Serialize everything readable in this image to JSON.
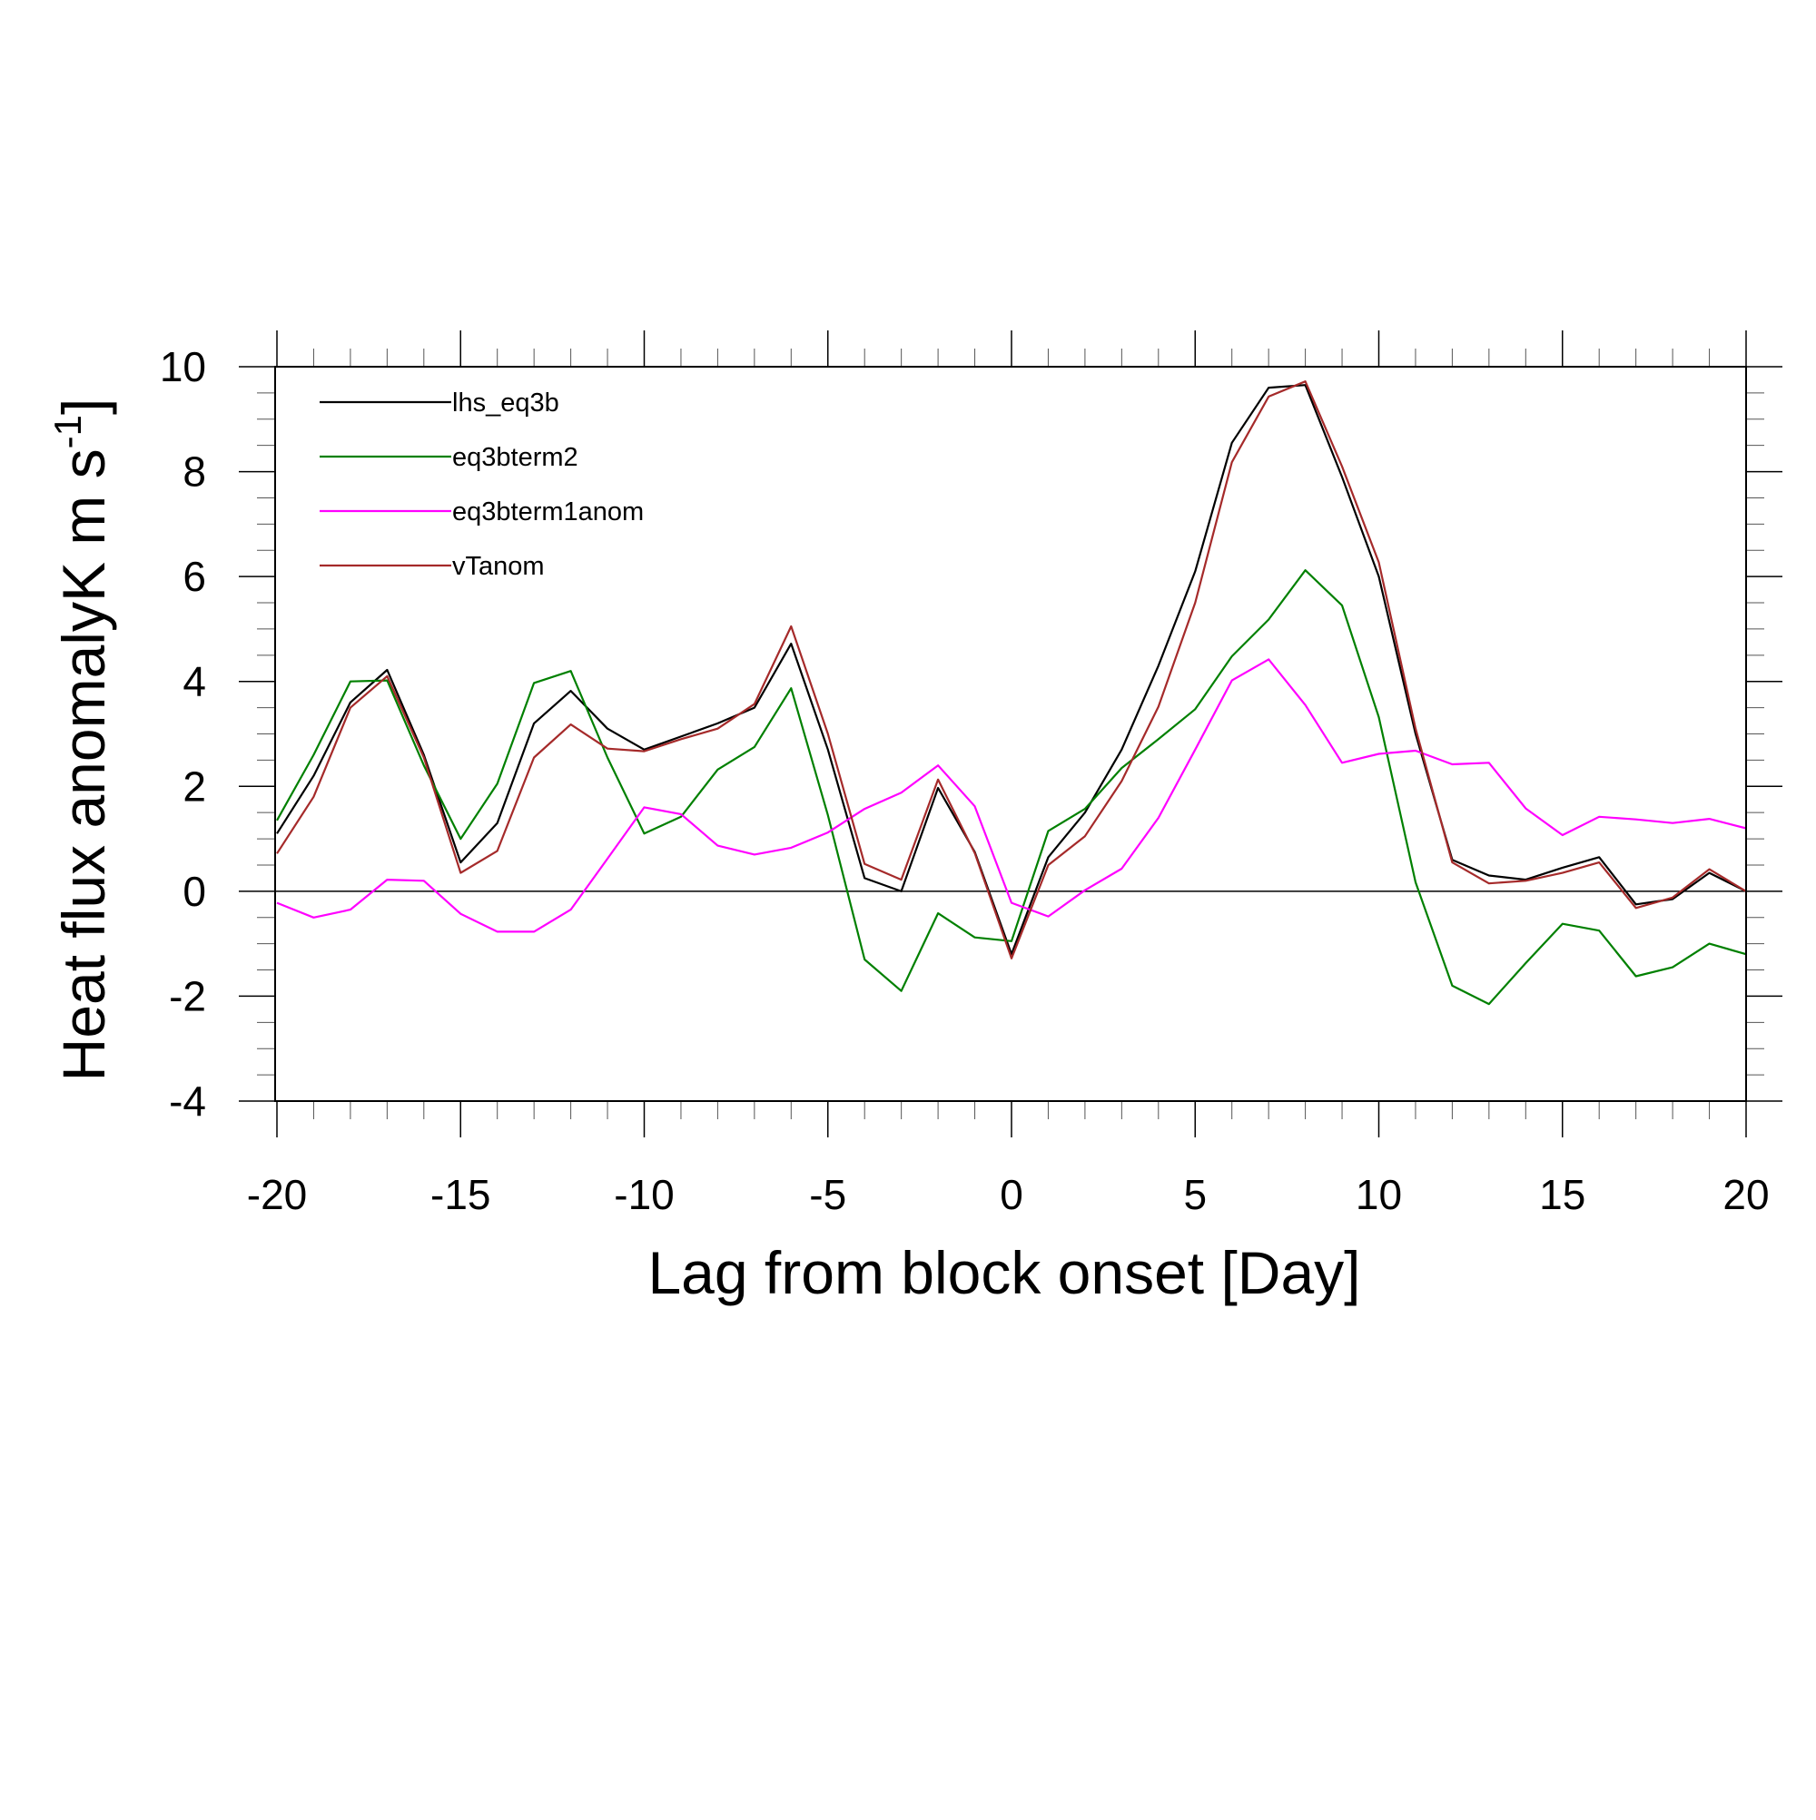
{
  "chart_data": {
    "type": "line",
    "xlabel": "Lag from block onset [Day]",
    "ylabel": "Heat flux anomalyK m s",
    "ylabel_superscript": "-1",
    "ylabel_close": "]",
    "xlim": [
      -20,
      20
    ],
    "ylim": [
      -4,
      10
    ],
    "x_ticks": [
      -20,
      -15,
      -10,
      -5,
      0,
      5,
      10,
      15,
      20
    ],
    "x_tick_labels": [
      "-20",
      "-15",
      "-10",
      "-5",
      "0",
      "5",
      "10",
      "15",
      "20"
    ],
    "y_ticks": [
      -4,
      -2,
      0,
      2,
      4,
      6,
      8,
      10
    ],
    "y_tick_labels": [
      "-4",
      "-2",
      "0",
      "2",
      "4",
      "6",
      "8",
      "10"
    ],
    "zero_line": true,
    "grid": false,
    "legend_position": "top-left",
    "x": [
      -20,
      -19,
      -18,
      -17,
      -16,
      -15,
      -14,
      -13,
      -12,
      -11,
      -10,
      -9,
      -8,
      -7,
      -6,
      -5,
      -4,
      -3,
      -2,
      -1,
      0,
      1,
      2,
      3,
      4,
      5,
      6,
      7,
      8,
      9,
      10,
      11,
      12,
      13,
      14,
      15,
      16,
      17,
      18,
      19,
      20
    ],
    "series": [
      {
        "name": "lhs_eq3b",
        "color": "#000000",
        "values": [
          1.1,
          2.2,
          3.6,
          4.22,
          2.6,
          0.55,
          1.3,
          3.2,
          3.82,
          3.1,
          2.7,
          2.95,
          3.2,
          3.5,
          4.72,
          2.7,
          0.25,
          0.0,
          1.97,
          0.75,
          -1.2,
          0.65,
          1.5,
          2.7,
          4.3,
          6.1,
          8.55,
          9.6,
          9.65,
          7.9,
          6.0,
          3.0,
          0.6,
          0.3,
          0.22,
          0.45,
          0.65,
          -0.25,
          -0.15,
          0.35,
          0.0
        ]
      },
      {
        "name": "eq3bterm2",
        "color": "#008000",
        "values": [
          1.35,
          2.6,
          4.0,
          4.02,
          2.4,
          1.0,
          2.05,
          3.97,
          4.2,
          2.55,
          1.1,
          1.42,
          2.32,
          2.75,
          3.87,
          1.45,
          -1.3,
          -1.9,
          -0.42,
          -0.88,
          -0.95,
          1.15,
          1.57,
          2.35,
          2.9,
          3.47,
          4.48,
          5.18,
          6.12,
          5.45,
          3.32,
          0.17,
          -1.8,
          -2.15,
          -1.37,
          -0.62,
          -0.75,
          -1.62,
          -1.45,
          -1.0,
          -1.2
        ]
      },
      {
        "name": "eq3bterm1anom",
        "color": "#ff00ff",
        "values": [
          -0.22,
          -0.5,
          -0.35,
          0.22,
          0.2,
          -0.43,
          -0.77,
          -0.77,
          -0.35,
          0.62,
          1.6,
          1.47,
          0.87,
          0.7,
          0.83,
          1.12,
          1.57,
          1.88,
          2.4,
          1.62,
          -0.22,
          -0.48,
          0.02,
          0.43,
          1.4,
          2.7,
          4.02,
          4.42,
          3.55,
          2.45,
          2.62,
          2.68,
          2.42,
          2.45,
          1.58,
          1.07,
          1.42,
          1.37,
          1.3,
          1.38,
          1.2
        ]
      },
      {
        "name": "vTanom",
        "color": "#a52a2a",
        "values": [
          0.72,
          1.8,
          3.5,
          4.1,
          2.55,
          0.35,
          0.77,
          2.55,
          3.18,
          2.72,
          2.67,
          2.9,
          3.1,
          3.57,
          5.05,
          3.0,
          0.52,
          0.22,
          2.13,
          0.73,
          -1.28,
          0.5,
          1.05,
          2.1,
          3.52,
          5.5,
          8.18,
          9.43,
          9.72,
          8.1,
          6.27,
          3.1,
          0.55,
          0.15,
          0.2,
          0.35,
          0.55,
          -0.32,
          -0.12,
          0.42,
          0.0
        ]
      }
    ]
  }
}
